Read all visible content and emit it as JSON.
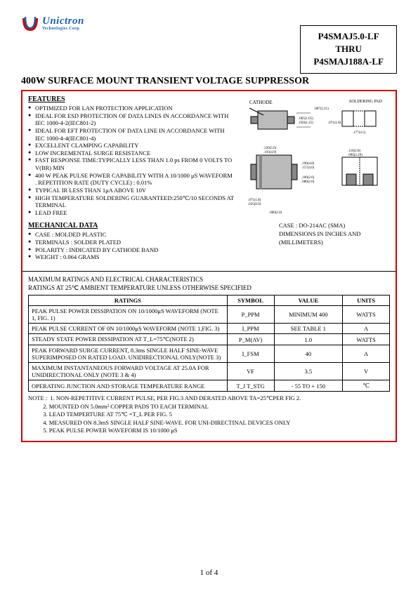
{
  "logo": {
    "brand": "Unictron",
    "sub": "Technologies Corp.",
    "colors": {
      "blue": "#1a5fb4",
      "red": "#d00000"
    }
  },
  "partbox": {
    "line1": "P4SMAJ5.0-LF",
    "line2": "THRU",
    "line3": "P4SMAJ188A-LF"
  },
  "title": "400W SURFACE MOUNT TRANSIENT VOLTAGE SUPPRESSOR",
  "features_head": "FEATURES",
  "features": [
    "OPTIMIZED FOR LAN PROTECTION APPLICATION",
    "IDEAL FOR ESD PROTECTION OF DATA LINES IN ACCORDANCE WITH IEC 1000-4-2(IEC801-2)",
    "IDEAL FOR EFT PROTECTION OF DATA LINE IN ACCORDANCE WITH IEC 1000-4-4(IEC801-4)",
    "EXCELLENT CLAMPING CAPABILITY",
    "LOW INCREMENTAL SURGE RESISTANCE",
    "FAST RESPONSE TIME:TYPICALLY LESS THAN 1.0 ps FROM 0 VOLTS TO V(BR) MIN",
    "400 W PEAK PULSE POWER CAPABILITY WITH A 10/1000 μS WAVEFORM . REPETITION RATE (DUTY CYCLE) : 0.01%",
    "TYPICAL IR LESS THAN 1μA ABOVE 10V",
    "HIGH TEMPERATURE SOLDERING GUARANTEED:250℃/10 SECONDS AT TERMINAL",
    "LEAD FREE"
  ],
  "mech_head": "MECHANICAL DATA",
  "mechanical": [
    "CASE : MOLDED PLASTIC",
    "TERMINALS : SOLDER PLATED",
    "POLARITY : INDICATED BY CATHODE BAND",
    "WEIGHT : 0.064 GRAMS"
  ],
  "diagram": {
    "cathode_label": "CATHODE",
    "pad_label": "SOLDERING PAD",
    "dims": [
      ".087(2.21)",
      ".065(1.65)",
      ".050(1.25)",
      ".071(1.8)",
      ".177(4.5)",
      ".220(5.6)",
      ".193(4.9)",
      ".190(4.8)",
      ".157(4.0)",
      ".110(2.8)",
      ".090(2.29)",
      ".100(2.6)",
      ".080(2.0)",
      ".071(1.8)",
      ".035(0.9)",
      ".080(2.0)"
    ],
    "case_line1": "CASE : DO-214AC (SMA)",
    "case_line2": "DIMENSIONS IN INCHES AND (MILLIMETERS)"
  },
  "ratings_header1": "MAXIMUM RATINGS AND ELECTRICAL CHARACTERISTICS",
  "ratings_header2": "RATINGS AT 25℃ AMBIENT TEMPERATURE UNLESS OTHERWISE SPECIFIED",
  "table": {
    "columns": [
      "RATINGS",
      "SYMBOL",
      "VALUE",
      "UNITS"
    ],
    "rows": [
      [
        "PEAK PULSE POWER DISSIPATION ON 10/1000μS WAVEFORM (NOTE 1, FIG. 1)",
        "P_PPM",
        "MINIMUM 400",
        "WATTS"
      ],
      [
        "PEAK PULSE CURRENT OF 0N 10/1000μS WAVEFORM (NOTE 1,FIG. 3)",
        "I_PPM",
        "SEE TABLE 1",
        "A"
      ],
      [
        "STEADY STATE POWER DISSIPATION AT T_L=75℃(NOTE 2)",
        "P_M(AV)",
        "1.0",
        "WATTS"
      ],
      [
        "PEAK FORWARD SURGE CURRENT, 8.3ms SINGLE HALF SINE-WAVE SUPERIMPOSED ON RATED LOAD. UNIDIRECTIONAL ONLY(NOTE 3)",
        "I_FSM",
        "40",
        "A"
      ],
      [
        "MAXIMUM INSTANTANEOUS FORWARD VOLTAGE AT 25.0A FOR UNIDIRECTIONAL ONLY (NOTE 3 & 4)",
        "VF",
        "3.5",
        "V"
      ],
      [
        "OPERATING JUNCTION AND STORAGE TEMPERATURE RANGE",
        "T_J T_STG",
        "- 55 TO + 150",
        "℃"
      ]
    ],
    "col_widths": [
      "55%",
      "13%",
      "19%",
      "13%"
    ]
  },
  "notes_label": "NOTE :",
  "notes": [
    "1. NON-REPETITIVE CURRENT PULSE, PER FIG.3 AND DERATED ABOVE TA=25℃PER FIG 2.",
    "2. MOUNTED ON 5.0mm² COPPER PADS TO EACH TERMINAL",
    "3. LEAD TEMPERTURE AT 75℃ =T_L PER FIG. 5",
    "4. MEASURED ON 8.3mS SINGLE HALF SINE-WAVE. FOR UNI-DIRECTINAL DEVICES ONLY",
    "5. PEAK PULSE POWER WAVEFORM IS 10/1000 μS"
  ],
  "page_num": "1 of 4",
  "style": {
    "border_color": "#d00000",
    "font": "Times New Roman",
    "bg": "#ffffff"
  }
}
